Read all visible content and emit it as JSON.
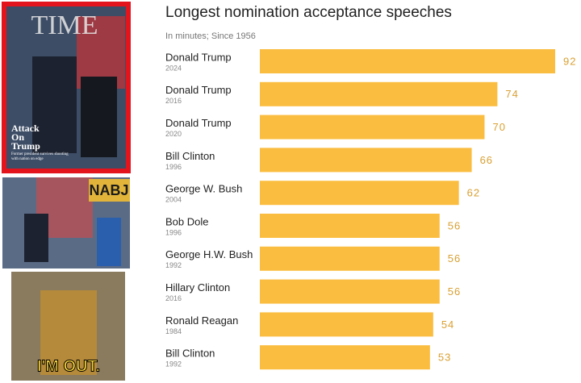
{
  "panels": {
    "cover": {
      "masthead": "TIME",
      "headline": "Attack On Trump",
      "deck": "Former president survives shooting with nation on edge"
    },
    "photo": {
      "sign": "NABJ"
    },
    "gif": {
      "caption": "I'M OUT."
    }
  },
  "chart_data": {
    "type": "bar",
    "orientation": "horizontal",
    "title": "Longest nomination acceptance speeches",
    "subtitle": "In minutes; Since 1956",
    "categories": [
      "Donald Trump",
      "Donald Trump",
      "Donald Trump",
      "Bill Clinton",
      "George W. Bush",
      "Bob Dole",
      "George H.W. Bush",
      "Hillary Clinton",
      "Ronald Reagan",
      "Bill Clinton"
    ],
    "subcategories": [
      "2024",
      "2016",
      "2020",
      "1996",
      "2004",
      "1996",
      "1992",
      "2016",
      "1984",
      "1992"
    ],
    "values": [
      92,
      74,
      70,
      66,
      62,
      56,
      56,
      56,
      54,
      53
    ],
    "color": "#fbbd3f",
    "label_color": "#d9a032"
  }
}
